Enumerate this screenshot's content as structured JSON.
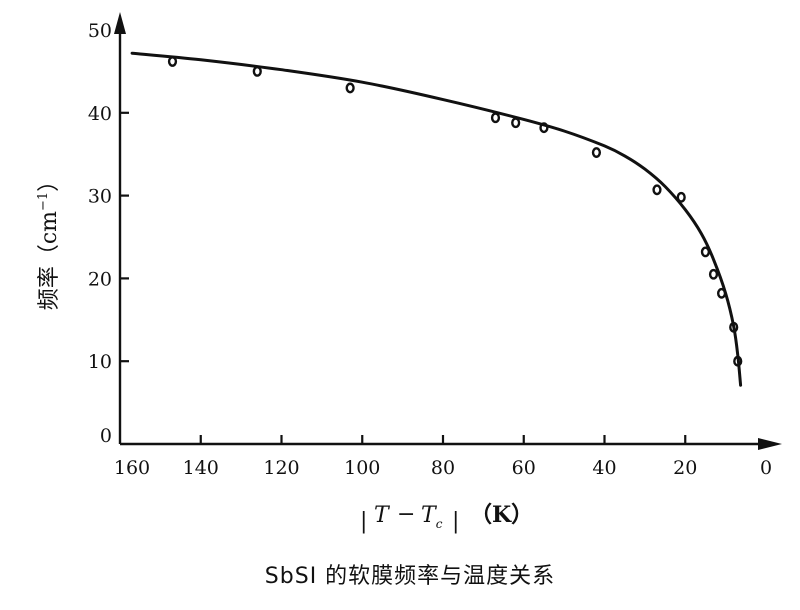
{
  "chart_data": {
    "type": "scatter",
    "title": "SbSI 的软膜频率与温度关系",
    "xlabel": {
      "abs_open": "|",
      "T": "T",
      "minus": "−",
      "Tc_main": "T",
      "Tc_sub": "c",
      "abs_close": "|",
      "unit": "（K）"
    },
    "ylabel": {
      "main": "频率（cm",
      "sup": "−1",
      "close": "）"
    },
    "xlim": [
      160,
      0
    ],
    "ylim": [
      0,
      50
    ],
    "x_reversed": true,
    "x_ticks": [
      160,
      140,
      120,
      100,
      80,
      60,
      40,
      20,
      0
    ],
    "y_ticks": [
      0,
      10,
      20,
      30,
      40,
      50
    ],
    "grid": false,
    "series": [
      {
        "kind": "measured",
        "marker": "open-circle",
        "points": [
          {
            "x": 147,
            "y": 46.2
          },
          {
            "x": 126,
            "y": 45.0
          },
          {
            "x": 103,
            "y": 43.0
          },
          {
            "x": 67,
            "y": 39.4
          },
          {
            "x": 62,
            "y": 38.8
          },
          {
            "x": 55,
            "y": 38.2
          },
          {
            "x": 42,
            "y": 35.2
          },
          {
            "x": 27,
            "y": 30.7
          },
          {
            "x": 21,
            "y": 29.8
          },
          {
            "x": 15,
            "y": 23.2
          },
          {
            "x": 13,
            "y": 20.5
          },
          {
            "x": 11,
            "y": 18.2
          },
          {
            "x": 8,
            "y": 14.1
          },
          {
            "x": 7,
            "y": 10.0
          }
        ]
      },
      {
        "kind": "fit",
        "line": "solid",
        "points": [
          {
            "x": 157,
            "y": 47.2
          },
          {
            "x": 140,
            "y": 46.4
          },
          {
            "x": 120,
            "y": 45.2
          },
          {
            "x": 100,
            "y": 43.7
          },
          {
            "x": 80,
            "y": 41.6
          },
          {
            "x": 60,
            "y": 39.2
          },
          {
            "x": 50,
            "y": 37.8
          },
          {
            "x": 40,
            "y": 36.0
          },
          {
            "x": 35,
            "y": 34.8
          },
          {
            "x": 30,
            "y": 33.2
          },
          {
            "x": 25,
            "y": 31.1
          },
          {
            "x": 20,
            "y": 28.3
          },
          {
            "x": 16,
            "y": 25.4
          },
          {
            "x": 13,
            "y": 22.3
          },
          {
            "x": 10,
            "y": 18.2
          },
          {
            "x": 8,
            "y": 14.2
          },
          {
            "x": 7,
            "y": 10.8
          },
          {
            "x": 6.3,
            "y": 7.1
          }
        ]
      }
    ]
  }
}
